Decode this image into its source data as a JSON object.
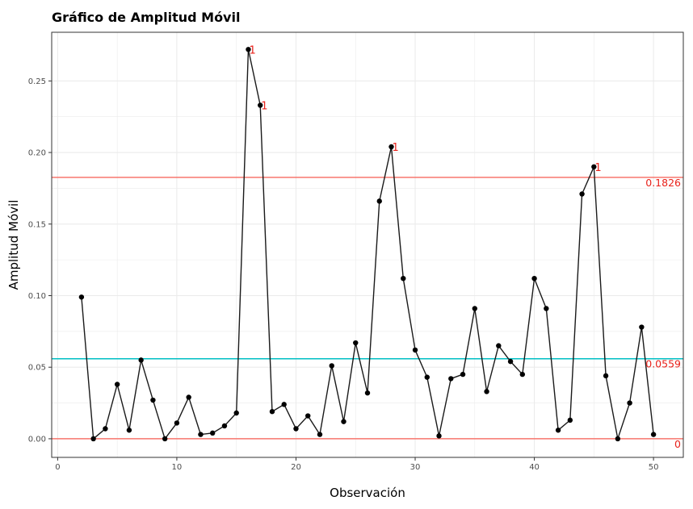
{
  "chart_data": {
    "type": "line",
    "title": "Gráfico de Amplitud Móvil",
    "xlabel": "Observación",
    "ylabel": "Amplitud Móvil",
    "xlim": [
      -0.5,
      52.5
    ],
    "ylim": [
      -0.013,
      0.284
    ],
    "xticks": [
      0,
      10,
      20,
      30,
      40,
      50
    ],
    "xtick_labels": [
      "0",
      "10",
      "20",
      "30",
      "40",
      "50"
    ],
    "yticks": [
      0.0,
      0.05,
      0.1,
      0.15,
      0.2,
      0.25
    ],
    "ytick_labels": [
      "0.00",
      "0.05",
      "0.10",
      "0.15",
      "0.20",
      "0.25"
    ],
    "grid": true,
    "series": [
      {
        "x": [
          2,
          3,
          4,
          5,
          6,
          7,
          8,
          9,
          10,
          11,
          12,
          13,
          14,
          15,
          16,
          17,
          18,
          19,
          20,
          21,
          22,
          23,
          24,
          25,
          26,
          27,
          28,
          29,
          30,
          31,
          32,
          33,
          34,
          35,
          36,
          37,
          38,
          39,
          40,
          41,
          42,
          43,
          44,
          45,
          46,
          47,
          48,
          49,
          50
        ],
        "values": [
          0.099,
          0.0,
          0.007,
          0.038,
          0.006,
          0.055,
          0.027,
          0.0,
          0.011,
          0.029,
          0.003,
          0.004,
          0.009,
          0.018,
          0.272,
          0.233,
          0.019,
          0.024,
          0.007,
          0.016,
          0.003,
          0.051,
          0.012,
          0.067,
          0.032,
          0.166,
          0.204,
          0.112,
          0.062,
          0.043,
          0.002,
          0.042,
          0.045,
          0.091,
          0.033,
          0.065,
          0.054,
          0.045,
          0.112,
          0.091,
          0.006,
          0.013,
          0.171,
          0.19,
          0.044,
          0.0,
          0.025,
          0.078,
          0.003
        ],
        "color": "#000000"
      }
    ],
    "reference_lines": [
      {
        "value": 0.1826,
        "label": "0.1826",
        "color": "#f8766d"
      },
      {
        "value": 0.0559,
        "label": "0.0559",
        "color": "#00bfc4"
      },
      {
        "value": 0,
        "label": "0",
        "color": "#f8766d"
      }
    ],
    "flagged_points": [
      {
        "x": 16,
        "label": "1"
      },
      {
        "x": 17,
        "label": "1"
      },
      {
        "x": 28,
        "label": "1"
      },
      {
        "x": 45,
        "label": "1"
      }
    ],
    "colors": {
      "line": "#1a1a1a",
      "point": "#000000",
      "ucl": "#f8766d",
      "center": "#00bfc4",
      "flag_text": "#e8211a",
      "grid": "#ebebeb",
      "panel_border": "#333333"
    }
  }
}
